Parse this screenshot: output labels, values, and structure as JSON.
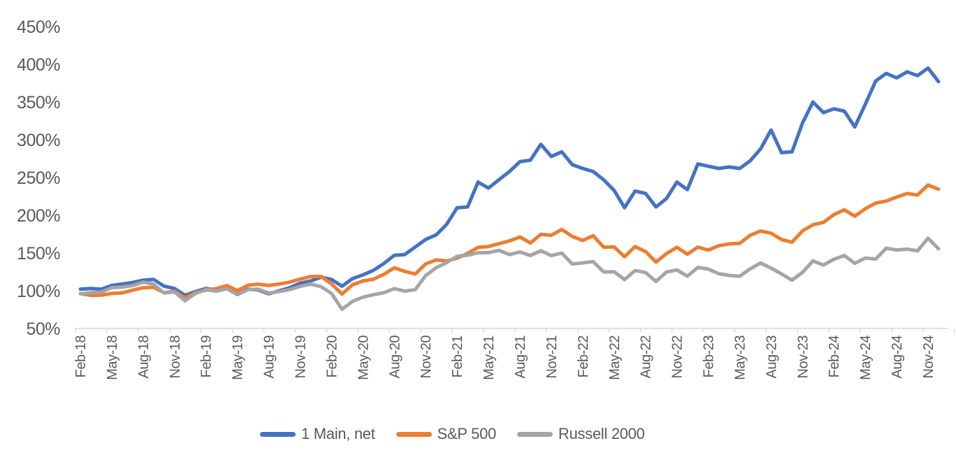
{
  "chart_data": {
    "type": "line",
    "title": "",
    "grid": false,
    "legend_position": "bottom",
    "x_axis": {
      "frequency": "monthly",
      "first_point": "Feb-2018",
      "last_point": "Dec-2024",
      "labels_every_n_points": 3,
      "tick_labels": [
        "Feb-18",
        "May-18",
        "Aug-18",
        "Nov-18",
        "Feb-19",
        "May-19",
        "Aug-19",
        "Nov-19",
        "Feb-20",
        "May-20",
        "Aug-20",
        "Nov-20",
        "Feb-21",
        "May-21",
        "Aug-21",
        "Nov-21",
        "Feb-22",
        "May-22",
        "Aug-22",
        "Nov-22",
        "Feb-23",
        "May-23",
        "Aug-23",
        "Nov-23",
        "Feb-24",
        "May-24",
        "Aug-24",
        "Nov-24"
      ]
    },
    "y_axis": {
      "unit": "%",
      "min": 50,
      "max": 450,
      "step": 50,
      "tick_labels": [
        "50%",
        "100%",
        "150%",
        "200%",
        "250%",
        "300%",
        "350%",
        "400%",
        "450%"
      ]
    },
    "series": [
      {
        "name": "1 Main, net",
        "color": "#4472C4",
        "values": [
          102,
          103,
          102,
          107,
          109,
          111,
          114,
          115,
          106,
          103,
          94,
          99,
          103,
          101,
          105,
          97,
          102,
          101,
          96,
          100,
          104,
          110,
          113,
          118,
          115,
          106,
          116,
          121,
          127,
          136,
          147,
          148,
          158,
          168,
          174,
          188,
          210,
          211,
          244,
          236,
          247,
          258,
          271,
          273,
          294,
          278,
          284,
          267,
          262,
          258,
          247,
          233,
          210,
          232,
          229,
          211,
          222,
          244,
          234,
          268,
          265,
          262,
          264,
          262,
          272,
          288,
          313,
          283,
          284,
          322,
          350,
          336,
          341,
          338,
          317,
          347,
          378,
          388,
          382,
          390,
          385,
          395,
          377
        ]
      },
      {
        "name": "S&P 500",
        "color": "#ED7D31",
        "values": [
          96.3,
          93.9,
          94.2,
          96.5,
          97.1,
          100.7,
          104,
          104.6,
          97.4,
          99.4,
          90.4,
          97.7,
          100.8,
          102.8,
          106.9,
          100.1,
          107.2,
          108.7,
          107,
          109,
          111.4,
          115.4,
          118.9,
          118.9,
          109.1,
          95.6,
          107.9,
          113,
          115.3,
          121.8,
          130.5,
          125.6,
          122.2,
          135.6,
          140.8,
          139.4,
          143.2,
          149.5,
          157.5,
          158.6,
          162.3,
          166.1,
          171.2,
          163.2,
          174.7,
          173.5,
          181.2,
          171.9,
          166.7,
          172.9,
          157.8,
          158.1,
          145.1,
          158.5,
          152,
          138,
          149.2,
          157.5,
          148.4,
          157.8,
          153.9,
          159.6,
          162.1,
          162.8,
          173.5,
          179.1,
          176.2,
          167.8,
          164.3,
          179.3,
          187.4,
          190.6,
          200.8,
          207.2,
          198.8,
          208.6,
          216.1,
          218.8,
          224.1,
          228.9,
          226.8,
          240.1,
          234.4
        ]
      },
      {
        "name": "Russell 2000",
        "color": "#A5A5A5",
        "values": [
          96.1,
          97.4,
          98.2,
          104.2,
          104.9,
          106.8,
          111.4,
          108.7,
          96.9,
          98.4,
          86.7,
          96.5,
          101.5,
          99.4,
          102.8,
          94.8,
          101.5,
          102.1,
          97,
          99,
          101.6,
          105.8,
          108.9,
          105.4,
          96.5,
          75.5,
          85.9,
          91.5,
          94.7,
          97.4,
          102.9,
          99.4,
          101.5,
          120.2,
          130.6,
          137.2,
          145.7,
          147.2,
          150.3,
          150.6,
          153.5,
          148,
          151.3,
          146.8,
          153,
          146.7,
          149.9,
          135.5,
          136.9,
          138.6,
          124.9,
          125.1,
          114.8,
          126.8,
          124.2,
          112.3,
          124.7,
          127.6,
          119.3,
          130.9,
          128.7,
          122.6,
          120.4,
          119.3,
          129,
          136.8,
          130,
          122.3,
          114,
          124.3,
          139.5,
          134.1,
          141.7,
          146.7,
          136.4,
          143.3,
          141.9,
          156.4,
          154,
          155.1,
          152.9,
          169.6,
          155.6
        ]
      }
    ]
  },
  "styles": {
    "background": "#FFFFFF",
    "axis_line_color": "#D9D9D9",
    "axis_text_color": "#595959",
    "legend_text_color": "#595959"
  }
}
